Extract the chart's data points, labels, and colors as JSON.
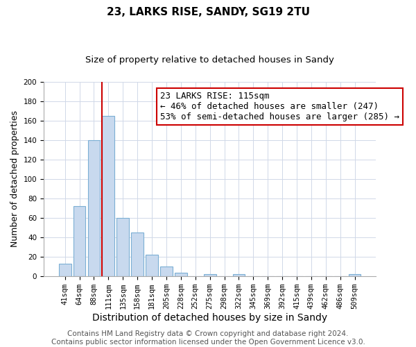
{
  "title": "23, LARKS RISE, SANDY, SG19 2TU",
  "subtitle": "Size of property relative to detached houses in Sandy",
  "xlabel": "Distribution of detached houses by size in Sandy",
  "ylabel": "Number of detached properties",
  "bar_labels": [
    "41sqm",
    "64sqm",
    "88sqm",
    "111sqm",
    "135sqm",
    "158sqm",
    "181sqm",
    "205sqm",
    "228sqm",
    "252sqm",
    "275sqm",
    "298sqm",
    "322sqm",
    "345sqm",
    "369sqm",
    "392sqm",
    "415sqm",
    "439sqm",
    "462sqm",
    "486sqm",
    "509sqm"
  ],
  "bar_values": [
    13,
    72,
    140,
    165,
    60,
    45,
    22,
    10,
    4,
    0,
    2,
    0,
    2,
    0,
    0,
    0,
    0,
    0,
    0,
    0,
    2
  ],
  "bar_color": "#c8d9ee",
  "bar_edge_color": "#7bafd4",
  "vline_color": "#cc0000",
  "ylim": [
    0,
    200
  ],
  "yticks": [
    0,
    20,
    40,
    60,
    80,
    100,
    120,
    140,
    160,
    180,
    200
  ],
  "annotation_title": "23 LARKS RISE: 115sqm",
  "annotation_line1": "← 46% of detached houses are smaller (247)",
  "annotation_line2": "53% of semi-detached houses are larger (285) →",
  "annotation_box_edge": "#cc0000",
  "footer_line1": "Contains HM Land Registry data © Crown copyright and database right 2024.",
  "footer_line2": "Contains public sector information licensed under the Open Government Licence v3.0.",
  "title_fontsize": 11,
  "subtitle_fontsize": 9.5,
  "xlabel_fontsize": 10,
  "ylabel_fontsize": 9,
  "footer_fontsize": 7.5,
  "annotation_fontsize": 9,
  "tick_fontsize": 7.5
}
